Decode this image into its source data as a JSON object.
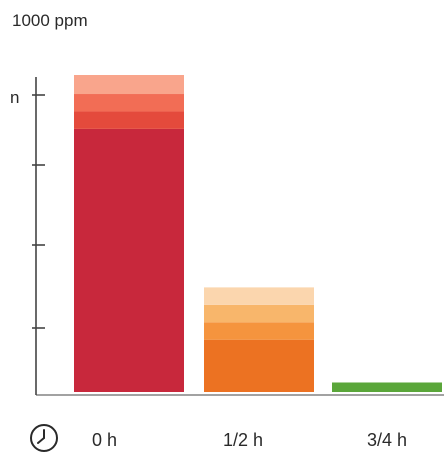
{
  "chart_data": {
    "type": "bar",
    "title": "",
    "unit_label": "1000 ppm",
    "ylabel": "",
    "xlabel": "",
    "y_tick_labels": [
      "n"
    ],
    "categories": [
      "0 h",
      "1/2 h",
      "3/4 h"
    ],
    "ylim": [
      0,
      1000
    ],
    "grid": false,
    "legend": "none",
    "bars": [
      {
        "category": "0 h",
        "total": 1000,
        "segments": [
          {
            "value": 830,
            "color": "#c8283c"
          },
          {
            "value": 55,
            "color": "#e44a3c"
          },
          {
            "value": 55,
            "color": "#f26d55"
          },
          {
            "value": 60,
            "color": "#f9a58c"
          }
        ]
      },
      {
        "category": "1/2 h",
        "total": 330,
        "segments": [
          {
            "value": 165,
            "color": "#ec7222"
          },
          {
            "value": 55,
            "color": "#f5943e"
          },
          {
            "value": 55,
            "color": "#f8b66b"
          },
          {
            "value": 55,
            "color": "#fbd6ae"
          }
        ]
      },
      {
        "category": "3/4 h",
        "total": 30,
        "segments": [
          {
            "value": 30,
            "color": "#5aa63a"
          }
        ]
      }
    ],
    "clock_icon": "clock-icon"
  }
}
